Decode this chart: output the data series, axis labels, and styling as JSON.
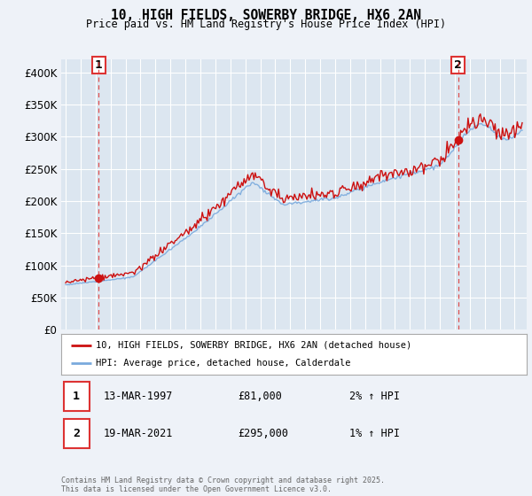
{
  "title_line1": "10, HIGH FIELDS, SOWERBY BRIDGE, HX6 2AN",
  "title_line2": "Price paid vs. HM Land Registry's House Price Index (HPI)",
  "ylim": [
    0,
    420000
  ],
  "yticks": [
    0,
    50000,
    100000,
    150000,
    200000,
    250000,
    300000,
    350000,
    400000
  ],
  "ytick_labels": [
    "£0",
    "£50K",
    "£100K",
    "£150K",
    "£200K",
    "£250K",
    "£300K",
    "£350K",
    "£400K"
  ],
  "background_color": "#eef2f8",
  "plot_bg_color": "#dce6f0",
  "grid_color": "#ffffff",
  "hpi_line_color": "#7aaadd",
  "price_line_color": "#cc1111",
  "marker_color": "#cc1111",
  "dashed_line_color": "#dd3333",
  "legend_label_price": "10, HIGH FIELDS, SOWERBY BRIDGE, HX6 2AN (detached house)",
  "legend_label_hpi": "HPI: Average price, detached house, Calderdale",
  "purchase1_date": 1997.2,
  "purchase1_price": 81000,
  "purchase2_date": 2021.22,
  "purchase2_price": 295000,
  "annotation1_date": "13-MAR-1997",
  "annotation1_price": "£81,000",
  "annotation1_hpi": "2% ↑ HPI",
  "annotation2_date": "19-MAR-2021",
  "annotation2_price": "£295,000",
  "annotation2_hpi": "1% ↑ HPI",
  "copyright_text": "Contains HM Land Registry data © Crown copyright and database right 2025.\nThis data is licensed under the Open Government Licence v3.0.",
  "xlim_start": 1994.7,
  "xlim_end": 2025.8,
  "xticks": [
    1995,
    1996,
    1997,
    1998,
    1999,
    2000,
    2001,
    2002,
    2003,
    2004,
    2005,
    2006,
    2007,
    2008,
    2009,
    2010,
    2011,
    2012,
    2013,
    2014,
    2015,
    2016,
    2017,
    2018,
    2019,
    2020,
    2021,
    2022,
    2023,
    2024,
    2025
  ]
}
